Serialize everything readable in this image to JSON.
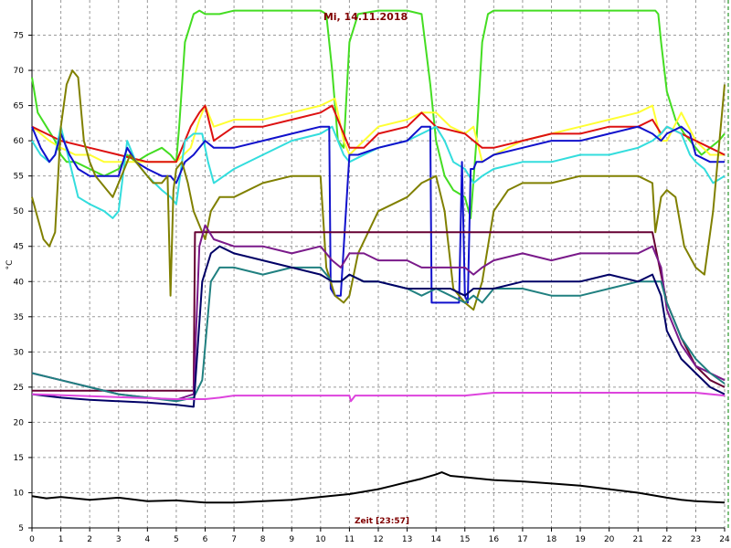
{
  "chart_data": {
    "type": "line",
    "title": "Mi, 14.11.2018",
    "xlabel": "Zeit [23:57]",
    "ylabel": "°C",
    "xlim": [
      0,
      24
    ],
    "ylim": [
      5,
      80
    ],
    "xticks": [
      0,
      1,
      2,
      3,
      4,
      5,
      6,
      7,
      8,
      9,
      10,
      11,
      12,
      13,
      14,
      15,
      16,
      17,
      18,
      19,
      20,
      21,
      22,
      23,
      24
    ],
    "yticks": [
      5,
      10,
      15,
      20,
      25,
      30,
      35,
      40,
      45,
      50,
      55,
      60,
      65,
      70,
      75
    ],
    "grid": true,
    "colors": {
      "grid": "#9a9a9a",
      "background": "#ffffff",
      "right_border": "#008000"
    },
    "series": [
      {
        "color": "#44dd22",
        "x": [
          0,
          0.2,
          0.5,
          0.8,
          1.0,
          1.2,
          1.5,
          2.0,
          2.5,
          3.0,
          3.3,
          3.6,
          4.0,
          4.5,
          4.8,
          5.0,
          5.1,
          5.3,
          5.6,
          5.8,
          6.0,
          6.5,
          7,
          8,
          9,
          10,
          10.2,
          10.4,
          10.6,
          10.8,
          11.0,
          11.3,
          12,
          13,
          13.5,
          13.8,
          14.0,
          14.3,
          14.6,
          15.0,
          15.2,
          15.4,
          15.6,
          15.8,
          16.0,
          16.5,
          17,
          18,
          19,
          20,
          21,
          21.6,
          21.7,
          21.8,
          22.0,
          22.3,
          22.6,
          23.0,
          23.2,
          23.5,
          23.8,
          24
        ],
        "y": [
          69,
          64,
          62,
          60,
          58,
          57,
          57,
          56,
          55,
          56,
          58,
          57,
          58,
          59,
          58,
          57,
          62,
          74,
          78,
          78.5,
          78,
          78,
          78.5,
          78.5,
          78.5,
          78.5,
          78,
          70,
          60,
          59,
          74,
          78,
          78.5,
          78.5,
          78,
          68,
          60,
          55,
          53,
          52,
          49,
          60,
          74,
          78,
          78.5,
          78.5,
          78.5,
          78.5,
          78.5,
          78.5,
          78.5,
          78.5,
          78,
          74,
          67,
          63,
          61,
          59,
          58,
          59,
          60,
          61
        ]
      },
      {
        "color": "#ffff33",
        "x": [
          0,
          0.3,
          0.6,
          1,
          1.5,
          2,
          2.5,
          3,
          3.5,
          4,
          4.5,
          5,
          5.5,
          5.8,
          6,
          6.3,
          7,
          8,
          9,
          10,
          10.5,
          10.8,
          11.0,
          11.5,
          12,
          13,
          13.5,
          14,
          14.5,
          15,
          15.3,
          15.6,
          16,
          17,
          18,
          19,
          20,
          21,
          21.5,
          21.8,
          22,
          22.5,
          23,
          23.5,
          24
        ],
        "y": [
          62,
          61,
          60,
          59,
          58,
          58,
          57,
          57,
          57,
          57,
          57,
          57,
          59,
          63,
          65,
          62,
          63,
          63,
          64,
          65,
          66,
          60,
          58,
          60,
          62,
          63,
          64,
          64,
          62,
          61,
          62,
          57,
          58,
          60,
          61,
          62,
          63,
          64,
          65,
          60,
          60,
          64,
          60,
          58,
          58
        ]
      },
      {
        "color": "#dd1111",
        "x": [
          0,
          0.5,
          1,
          2,
          3,
          4,
          5,
          5.5,
          5.8,
          6,
          6.3,
          7,
          8,
          9,
          10,
          10.4,
          10.7,
          11.0,
          11.5,
          12,
          13,
          13.5,
          14,
          15,
          15.3,
          15.6,
          16,
          17,
          18,
          19,
          20,
          21,
          21.5,
          21.8,
          22,
          22.5,
          23,
          23.5,
          24
        ],
        "y": [
          62,
          61,
          60,
          59,
          58,
          57,
          57,
          62,
          64,
          65,
          60,
          62,
          62,
          63,
          64,
          65,
          62,
          59,
          59,
          61,
          62,
          64,
          62,
          61,
          60,
          59,
          59,
          60,
          61,
          61,
          62,
          62,
          63,
          61,
          62,
          61,
          60,
          59,
          58
        ]
      },
      {
        "color": "#33dddd",
        "x": [
          0,
          0.3,
          0.6,
          0.8,
          1.0,
          1.3,
          1.6,
          2.0,
          2.5,
          2.8,
          3.0,
          3.3,
          3.6,
          4.0,
          4.5,
          4.8,
          5.0,
          5.3,
          5.6,
          5.9,
          6.1,
          6.3,
          7,
          8,
          9,
          10,
          10.4,
          10.6,
          10.8,
          11.0,
          11.5,
          12,
          13,
          13.5,
          14,
          14.3,
          14.6,
          15,
          15.3,
          15.6,
          16,
          17,
          18,
          19,
          20,
          21,
          21.5,
          21.8,
          22,
          22.5,
          22.8,
          23,
          23.3,
          23.6,
          24
        ],
        "y": [
          60,
          58,
          57,
          58,
          62,
          57,
          52,
          51,
          50,
          49,
          50,
          60,
          57,
          55,
          53,
          52,
          51,
          60,
          61,
          61,
          57,
          54,
          56,
          58,
          60,
          61,
          62,
          60,
          58,
          57,
          58,
          59,
          60,
          61,
          62,
          60,
          57,
          56,
          54,
          55,
          56,
          57,
          57,
          58,
          58,
          59,
          60,
          61,
          62,
          61,
          58,
          57,
          56,
          54,
          55
        ]
      },
      {
        "color": "#1111cc",
        "x": [
          0,
          0.3,
          0.6,
          0.8,
          1.0,
          1.3,
          1.6,
          2.0,
          2.5,
          2.8,
          3.0,
          3.3,
          3.6,
          4.0,
          4.5,
          4.8,
          5.0,
          5.3,
          5.6,
          5.8,
          6.0,
          6.3,
          7,
          8,
          9,
          10,
          10.3,
          10.35,
          10.5,
          10.7,
          11.0,
          11.3,
          12,
          13,
          13.5,
          13.8,
          13.85,
          14.0,
          14.5,
          14.8,
          14.9,
          15.0,
          15.1,
          15.2,
          15.3,
          15.4,
          15.6,
          16,
          17,
          18,
          19,
          20,
          21,
          21.5,
          21.8,
          22,
          22.5,
          22.8,
          23,
          23.5,
          24
        ],
        "y": [
          62,
          59,
          57,
          58,
          61,
          58,
          56,
          55,
          55,
          55,
          55,
          59,
          57,
          56,
          55,
          55,
          54,
          57,
          58,
          59,
          60,
          59,
          59,
          60,
          61,
          62,
          62,
          39,
          38,
          38,
          58,
          58,
          59,
          60,
          62,
          62,
          37,
          37,
          37,
          37,
          57,
          38,
          37,
          56,
          56,
          57,
          57,
          58,
          59,
          60,
          60,
          61,
          62,
          61,
          60,
          61,
          62,
          61,
          58,
          57,
          57
        ]
      },
      {
        "color": "#808000",
        "x": [
          0,
          0.2,
          0.4,
          0.6,
          0.8,
          1.0,
          1.2,
          1.4,
          1.6,
          1.8,
          2.0,
          2.2,
          2.4,
          2.6,
          2.8,
          3.0,
          3.2,
          3.4,
          3.6,
          3.8,
          4.0,
          4.2,
          4.5,
          4.7,
          4.8,
          4.9,
          5.0,
          5.2,
          5.4,
          5.6,
          5.8,
          6.0,
          6.2,
          6.5,
          7,
          8,
          9,
          10,
          10.2,
          10.5,
          10.8,
          11.0,
          11.3,
          12,
          13,
          13.5,
          14,
          14.3,
          14.6,
          15.0,
          15.3,
          15.6,
          16,
          16.5,
          17,
          18,
          19,
          20,
          21,
          21.5,
          21.6,
          21.8,
          22,
          22.3,
          22.6,
          23,
          23.3,
          23.6,
          24
        ],
        "y": [
          52,
          49,
          46,
          45,
          47,
          62,
          68,
          70,
          69,
          60,
          57,
          55,
          54,
          53,
          52,
          54,
          56,
          58,
          57,
          56,
          55,
          54,
          54,
          55,
          38,
          53,
          56,
          57,
          54,
          50,
          48,
          46,
          50,
          52,
          52,
          54,
          55,
          55,
          42,
          38,
          37,
          38,
          44,
          50,
          52,
          54,
          55,
          50,
          39,
          37,
          36,
          40,
          50,
          53,
          54,
          54,
          55,
          55,
          55,
          54,
          47,
          52,
          53,
          52,
          45,
          42,
          41,
          50,
          68
        ]
      },
      {
        "color": "#660033",
        "x": [
          0,
          5.6,
          5.65,
          21.5,
          22,
          22.5,
          23,
          23.5,
          24
        ],
        "y": [
          24.5,
          24.5,
          47,
          47,
          37,
          32,
          28,
          26,
          25
        ]
      },
      {
        "color": "#7a1a8a",
        "x": [
          0,
          1,
          2,
          3,
          4,
          5,
          5.6,
          5.8,
          6.0,
          6.3,
          7,
          8,
          9,
          10,
          10.4,
          10.7,
          11,
          11.5,
          12,
          13,
          13.5,
          14,
          15,
          15.3,
          15.6,
          16,
          17,
          18,
          19,
          20,
          21,
          21.5,
          21.8,
          22,
          22.5,
          23,
          23.5,
          24
        ],
        "y": [
          27,
          26,
          25,
          24,
          23.5,
          23.2,
          24,
          45,
          48,
          46,
          45,
          45,
          44,
          45,
          43,
          42,
          44,
          44,
          43,
          43,
          42,
          42,
          42,
          41,
          42,
          43,
          44,
          43,
          44,
          44,
          44,
          45,
          42,
          36,
          31,
          28,
          27,
          26
        ]
      },
      {
        "color": "#208080",
        "x": [
          0,
          1,
          2,
          3,
          4,
          5,
          5.6,
          5.9,
          6.2,
          6.5,
          7,
          8,
          9,
          10,
          10.4,
          10.7,
          11,
          11.5,
          12,
          13,
          13.5,
          14,
          14.5,
          15,
          15.3,
          15.6,
          16,
          17,
          18,
          19,
          20,
          21,
          21.5,
          21.8,
          22,
          22.5,
          23,
          23.5,
          24
        ],
        "y": [
          27,
          26,
          25,
          24,
          23.5,
          23,
          23.5,
          26,
          40,
          42,
          42,
          41,
          42,
          42,
          40,
          40,
          41,
          40,
          40,
          39,
          38,
          39,
          38,
          37,
          38,
          37,
          39,
          39,
          38,
          38,
          39,
          40,
          40,
          40,
          37,
          32,
          29,
          27,
          25.5
        ]
      },
      {
        "color": "#000066",
        "x": [
          0,
          1,
          2,
          3,
          4,
          5,
          5.6,
          5.9,
          6.2,
          6.5,
          7,
          8,
          9,
          10,
          10.4,
          10.7,
          11,
          11.5,
          12,
          13,
          13.5,
          14,
          14.5,
          15,
          15.3,
          15.6,
          16,
          17,
          18,
          19,
          20,
          21,
          21.5,
          21.8,
          22,
          22.5,
          23,
          23.5,
          24
        ],
        "y": [
          24,
          23.5,
          23.2,
          23,
          22.8,
          22.5,
          22.2,
          40,
          44,
          45,
          44,
          43,
          42,
          41,
          40,
          40,
          41,
          40,
          40,
          39,
          39,
          39,
          39,
          38,
          39,
          39,
          39,
          40,
          40,
          40,
          41,
          40,
          41,
          38,
          33,
          29,
          27,
          25,
          24
        ]
      },
      {
        "color": "#dd44dd",
        "x": [
          0,
          5,
          5.8,
          6,
          6.5,
          7,
          8,
          9,
          10,
          11,
          11.05,
          11.2,
          12,
          13,
          15,
          16,
          17,
          18,
          19,
          20,
          21,
          21.5,
          22,
          23,
          24
        ],
        "y": [
          24,
          23.3,
          23.3,
          23.3,
          23.5,
          23.8,
          23.8,
          23.8,
          23.8,
          23.8,
          23.0,
          23.8,
          23.8,
          23.8,
          23.8,
          24.2,
          24.2,
          24.2,
          24.2,
          24.2,
          24.2,
          24.2,
          24.2,
          24.2,
          23.8
        ]
      },
      {
        "color": "#000000",
        "x": [
          0,
          0.5,
          1,
          2,
          3,
          4,
          5,
          6,
          7,
          8,
          9,
          10,
          11,
          12,
          12.5,
          13,
          13.5,
          14,
          14.2,
          14.5,
          15,
          16,
          17,
          18,
          19,
          20,
          21,
          22,
          22.5,
          23,
          24
        ],
        "y": [
          9.5,
          9.2,
          9.4,
          9.0,
          9.3,
          8.8,
          8.9,
          8.6,
          8.6,
          8.8,
          9.0,
          9.4,
          9.8,
          10.5,
          11.0,
          11.5,
          12.0,
          12.6,
          12.9,
          12.4,
          12.2,
          11.8,
          11.6,
          11.3,
          11.0,
          10.5,
          10.0,
          9.3,
          9.0,
          8.8,
          8.6
        ]
      }
    ]
  }
}
